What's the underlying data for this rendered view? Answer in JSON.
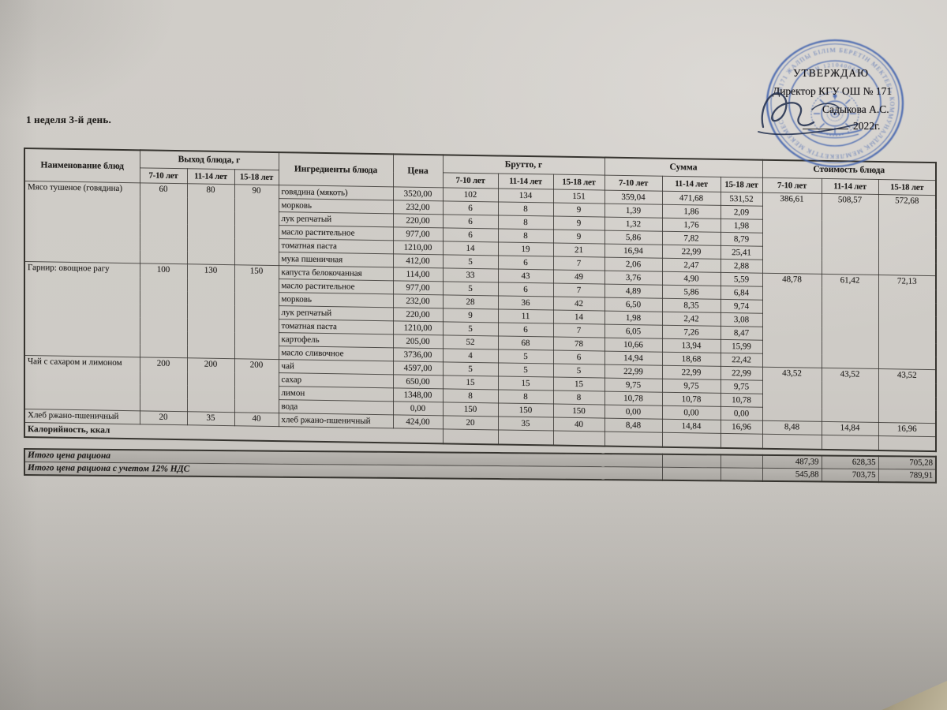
{
  "doc": {
    "title": "1 неделя 3-й день.",
    "approval": {
      "line1": "УТВЕРЖДАЮ",
      "line2": "Директор КГУ ОШ № 171",
      "line3": "Садыкова А.С.",
      "year": "2022г."
    },
    "stamp": {
      "ring_text": "«№171 ЖАЛПЫ БІЛІМ БЕРЕТІН МЕКТЕБІ» КОММУНАЛДЫҚ МЕМЛЕКЕТТІК МЕКЕМЕСІ",
      "bin_text": "БСН 1210400465",
      "color": "#4263ae"
    }
  },
  "table": {
    "header": {
      "col_dish": "Наименование блюд",
      "col_output": "Выход блюда, г",
      "col_ingredients": "Ингредиенты блюда",
      "col_price": "Цена",
      "col_gross": "Брутто, г",
      "col_sum": "Сумма",
      "col_cost": "Стоимость блюда",
      "age_groups": [
        "7-10 лет",
        "11-14 лет",
        "15-18 лет"
      ]
    },
    "dishes": [
      {
        "name": "Мясо тушеное (говядина)",
        "output": [
          "60",
          "80",
          "90"
        ],
        "cost": [
          "386,61",
          "508,57",
          "572,68"
        ],
        "ingredients": [
          {
            "name": "говядина (мякоть)",
            "price": "3520,00",
            "gross": [
              "102",
              "134",
              "151"
            ],
            "sum": [
              "359,04",
              "471,68",
              "531,52"
            ]
          },
          {
            "name": "морковь",
            "price": "232,00",
            "gross": [
              "6",
              "8",
              "9"
            ],
            "sum": [
              "1,39",
              "1,86",
              "2,09"
            ]
          },
          {
            "name": "лук репчатый",
            "price": "220,00",
            "gross": [
              "6",
              "8",
              "9"
            ],
            "sum": [
              "1,32",
              "1,76",
              "1,98"
            ]
          },
          {
            "name": "масло растительное",
            "price": "977,00",
            "gross": [
              "6",
              "8",
              "9"
            ],
            "sum": [
              "5,86",
              "7,82",
              "8,79"
            ]
          },
          {
            "name": "томатная паста",
            "price": "1210,00",
            "gross": [
              "14",
              "19",
              "21"
            ],
            "sum": [
              "16,94",
              "22,99",
              "25,41"
            ]
          },
          {
            "name": "мука пшеничная",
            "price": "412,00",
            "gross": [
              "5",
              "6",
              "7"
            ],
            "sum": [
              "2,06",
              "2,47",
              "2,88"
            ]
          }
        ]
      },
      {
        "name": "Гарнир: овощное рагу",
        "output": [
          "100",
          "130",
          "150"
        ],
        "cost": [
          "48,78",
          "61,42",
          "72,13"
        ],
        "ingredients": [
          {
            "name": "капуста белокочанная",
            "price": "114,00",
            "gross": [
              "33",
              "43",
              "49"
            ],
            "sum": [
              "3,76",
              "4,90",
              "5,59"
            ]
          },
          {
            "name": "масло растительное",
            "price": "977,00",
            "gross": [
              "5",
              "6",
              "7"
            ],
            "sum": [
              "4,89",
              "5,86",
              "6,84"
            ]
          },
          {
            "name": "морковь",
            "price": "232,00",
            "gross": [
              "28",
              "36",
              "42"
            ],
            "sum": [
              "6,50",
              "8,35",
              "9,74"
            ]
          },
          {
            "name": "лук репчатый",
            "price": "220,00",
            "gross": [
              "9",
              "11",
              "14"
            ],
            "sum": [
              "1,98",
              "2,42",
              "3,08"
            ]
          },
          {
            "name": "томатная паста",
            "price": "1210,00",
            "gross": [
              "5",
              "6",
              "7"
            ],
            "sum": [
              "6,05",
              "7,26",
              "8,47"
            ]
          },
          {
            "name": "картофель",
            "price": "205,00",
            "gross": [
              "52",
              "68",
              "78"
            ],
            "sum": [
              "10,66",
              "13,94",
              "15,99"
            ]
          },
          {
            "name": "масло сливочное",
            "price": "3736,00",
            "gross": [
              "4",
              "5",
              "6"
            ],
            "sum": [
              "14,94",
              "18,68",
              "22,42"
            ]
          }
        ]
      },
      {
        "name": "Чай с сахаром и лимоном",
        "output": [
          "200",
          "200",
          "200"
        ],
        "cost": [
          "43,52",
          "43,52",
          "43,52"
        ],
        "ingredients": [
          {
            "name": "чай",
            "price": "4597,00",
            "gross": [
              "5",
              "5",
              "5"
            ],
            "sum": [
              "22,99",
              "22,99",
              "22,99"
            ]
          },
          {
            "name": "сахар",
            "price": "650,00",
            "gross": [
              "15",
              "15",
              "15"
            ],
            "sum": [
              "9,75",
              "9,75",
              "9,75"
            ]
          },
          {
            "name": "лимон",
            "price": "1348,00",
            "gross": [
              "8",
              "8",
              "8"
            ],
            "sum": [
              "10,78",
              "10,78",
              "10,78"
            ]
          },
          {
            "name": "вода",
            "price": "0,00",
            "gross": [
              "150",
              "150",
              "150"
            ],
            "sum": [
              "0,00",
              "0,00",
              "0,00"
            ]
          }
        ]
      },
      {
        "name": "Хлеб ржано-пшеничный",
        "output": [
          "20",
          "35",
          "40"
        ],
        "cost": [
          "8,48",
          "14,84",
          "16,96"
        ],
        "ingredients": [
          {
            "name": "хлеб ржано-пшеничный",
            "price": "424,00",
            "gross": [
              "20",
              "35",
              "40"
            ],
            "sum": [
              "8,48",
              "14,84",
              "16,96"
            ]
          }
        ]
      }
    ],
    "calories_label": "Калорийность, ккал",
    "totals": [
      {
        "label": "Итого цена рациона",
        "values": [
          "487,39",
          "628,35",
          "705,28"
        ]
      },
      {
        "label": "Итого цена рациона с учетом 12% НДС",
        "values": [
          "545,88",
          "703,75",
          "789,91"
        ]
      }
    ]
  }
}
